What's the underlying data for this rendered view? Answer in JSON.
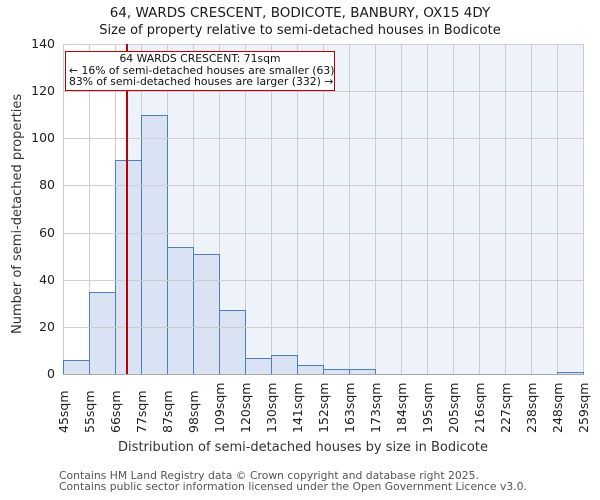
{
  "title": "64, WARDS CRESCENT, BODICOTE, BANBURY, OX15 4DY",
  "subtitle": "Size of property relative to semi-detached houses in Bodicote",
  "annotation": {
    "line1": "64 WARDS CRESCENT: 71sqm",
    "line2": "← 16% of semi-detached houses are smaller (63)",
    "line3": "83% of semi-detached houses are larger (332) →"
  },
  "footer": {
    "line1": "Contains HM Land Registry data © Crown copyright and database right 2025.",
    "line2": "Contains public sector information licensed under the Open Government Licence v3.0."
  },
  "chart_data": {
    "type": "bar",
    "title": "64, WARDS CRESCENT, BODICOTE, BANBURY, OX15 4DY",
    "subtitle": "Size of property relative to semi-detached houses in Bodicote",
    "xlabel": "Distribution of semi-detached houses by size in Bodicote",
    "ylabel": "Number of semi-detached properties",
    "bin_edges_sqm": [
      45,
      55,
      66,
      77,
      87,
      98,
      109,
      120,
      130,
      141,
      152,
      163,
      173,
      184,
      195,
      205,
      216,
      227,
      238,
      248,
      259
    ],
    "x_tick_labels": [
      "45sqm",
      "55sqm",
      "66sqm",
      "77sqm",
      "87sqm",
      "98sqm",
      "109sqm",
      "120sqm",
      "130sqm",
      "141sqm",
      "152sqm",
      "163sqm",
      "173sqm",
      "184sqm",
      "195sqm",
      "205sqm",
      "216sqm",
      "227sqm",
      "238sqm",
      "248sqm",
      "259sqm"
    ],
    "values": [
      6,
      35,
      91,
      110,
      54,
      51,
      27,
      7,
      8,
      4,
      2,
      2,
      0,
      0,
      0,
      0,
      0,
      0,
      0,
      1
    ],
    "y_ticks": [
      0,
      20,
      40,
      60,
      80,
      100,
      120,
      140
    ],
    "ylim": [
      0,
      140
    ],
    "grid": true,
    "legend": "none",
    "marker": {
      "value_sqm": 71,
      "label": "64 WARDS CRESCENT: 71sqm",
      "smaller_pct": 16,
      "smaller_count": 63,
      "larger_pct": 83,
      "larger_count": 332
    },
    "colors": {
      "bar_fill": "#d9e3f4",
      "bar_edge": "#4d7ebd",
      "marker_line": "#bb0000",
      "annotation_border": "#bb0000",
      "highlight_span": "#eef3fb",
      "gridline": "#cdcdcd"
    }
  }
}
